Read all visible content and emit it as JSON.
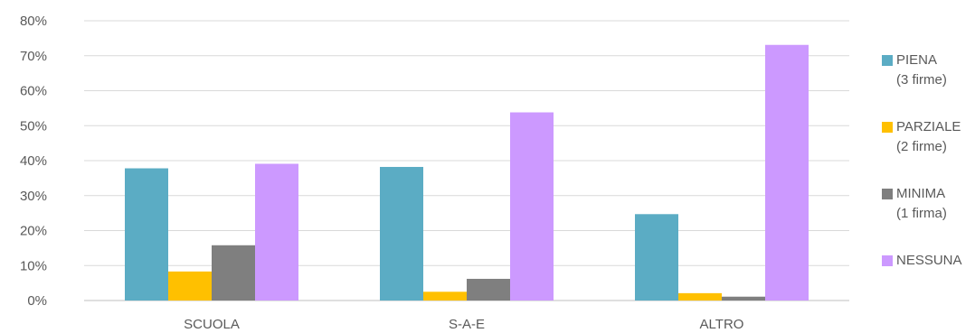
{
  "chart_data": {
    "type": "bar",
    "categories": [
      "SCUOLA",
      "S-A-E",
      "ALTRO"
    ],
    "series": [
      {
        "name": "PIENA",
        "sub": "(3 firme)",
        "color": "#5BACC4",
        "values": [
          37.8,
          38.2,
          24.7
        ]
      },
      {
        "name": "PARZIALE",
        "sub": "(2 firme)",
        "color": "#FFC000",
        "values": [
          8.3,
          2.5,
          2.1
        ]
      },
      {
        "name": "MINIMA",
        "sub": "(1 firma)",
        "color": "#7F7F7F",
        "values": [
          15.8,
          6.2,
          1.1
        ]
      },
      {
        "name": "NESSUNA",
        "sub": "",
        "color": "#CC99FF",
        "values": [
          39.1,
          53.8,
          73.1
        ]
      }
    ],
    "ylim": [
      0,
      80
    ],
    "yticks": [
      "0%",
      "10%",
      "20%",
      "30%",
      "40%",
      "50%",
      "60%",
      "70%",
      "80%"
    ],
    "grid": true,
    "legend_position": "right"
  }
}
